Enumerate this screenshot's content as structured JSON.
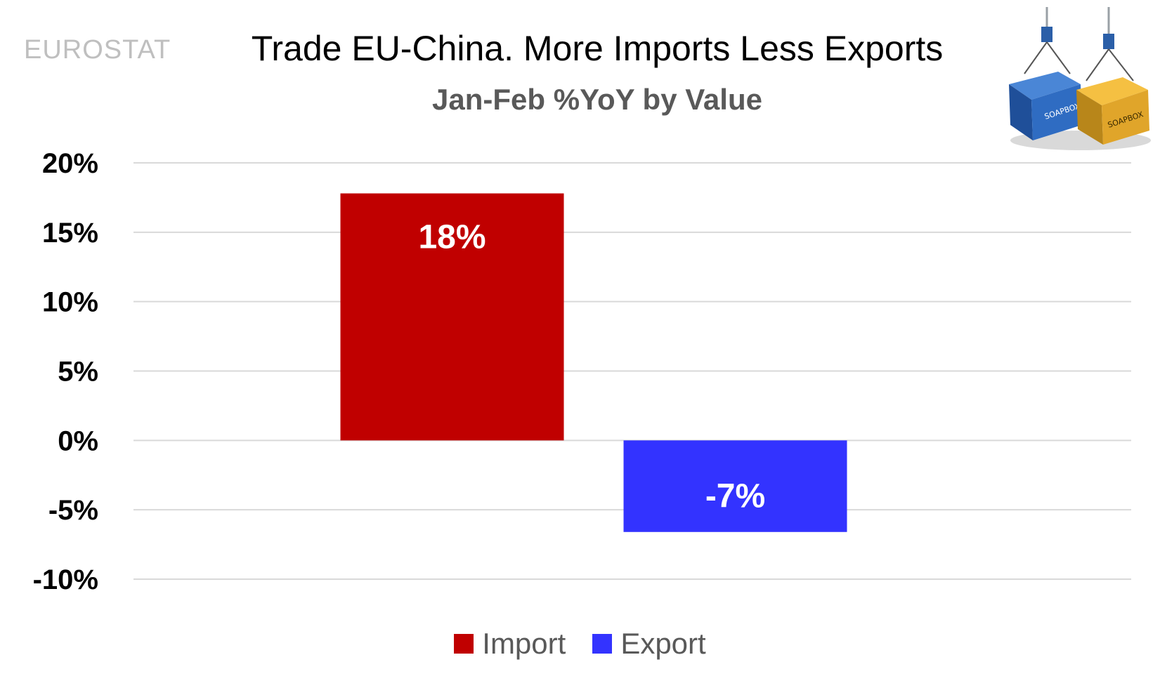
{
  "source_label": "EUROSTAT",
  "logo_text": "SOAPBOX",
  "chart_data": {
    "type": "bar",
    "title": "Trade EU-China. More Imports Less Exports",
    "subtitle": "Jan-Feb %YoY by Value",
    "categories": [
      "Import",
      "Export"
    ],
    "values": [
      17.8,
      -6.6
    ],
    "data_labels": [
      "18%",
      "-7%"
    ],
    "colors": [
      "#c00000",
      "#3333ff"
    ],
    "ylim": [
      -10,
      20
    ],
    "yticks": [
      20,
      15,
      10,
      5,
      0,
      -5,
      -10
    ],
    "ytick_labels": [
      "20%",
      "15%",
      "10%",
      "5%",
      "0%",
      "-5%",
      "-10%"
    ],
    "grid": true,
    "legend": {
      "position": "bottom",
      "entries": [
        "Import",
        "Export"
      ]
    }
  }
}
